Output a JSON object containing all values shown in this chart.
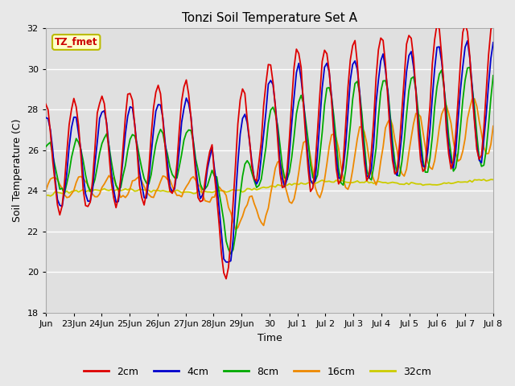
{
  "title": "Tonzi Soil Temperature Set A",
  "xlabel": "Time",
  "ylabel": "Soil Temperature (C)",
  "ylim": [
    18,
    32
  ],
  "yticks": [
    18,
    20,
    22,
    24,
    26,
    28,
    30,
    32
  ],
  "fig_bg": "#e8e8e8",
  "plot_bg": "#e0e0e0",
  "legend_label": "TZ_fmet",
  "legend_bg": "#ffffcc",
  "legend_border": "#bbbb00",
  "colors": {
    "2cm": "#dd0000",
    "4cm": "#0000cc",
    "8cm": "#00aa00",
    "16cm": "#ee8800",
    "32cm": "#cccc00"
  },
  "tick_labels": [
    "Jun",
    "23Jun",
    "24Jun",
    "25Jun",
    "26Jun",
    "27Jun",
    "28Jun",
    "29Jun",
    "30",
    "Jul 1",
    "Jul 2",
    "Jul 3",
    "Jul 4",
    "Jul 5",
    "Jul 6",
    "Jul 7",
    "Jul 8"
  ]
}
